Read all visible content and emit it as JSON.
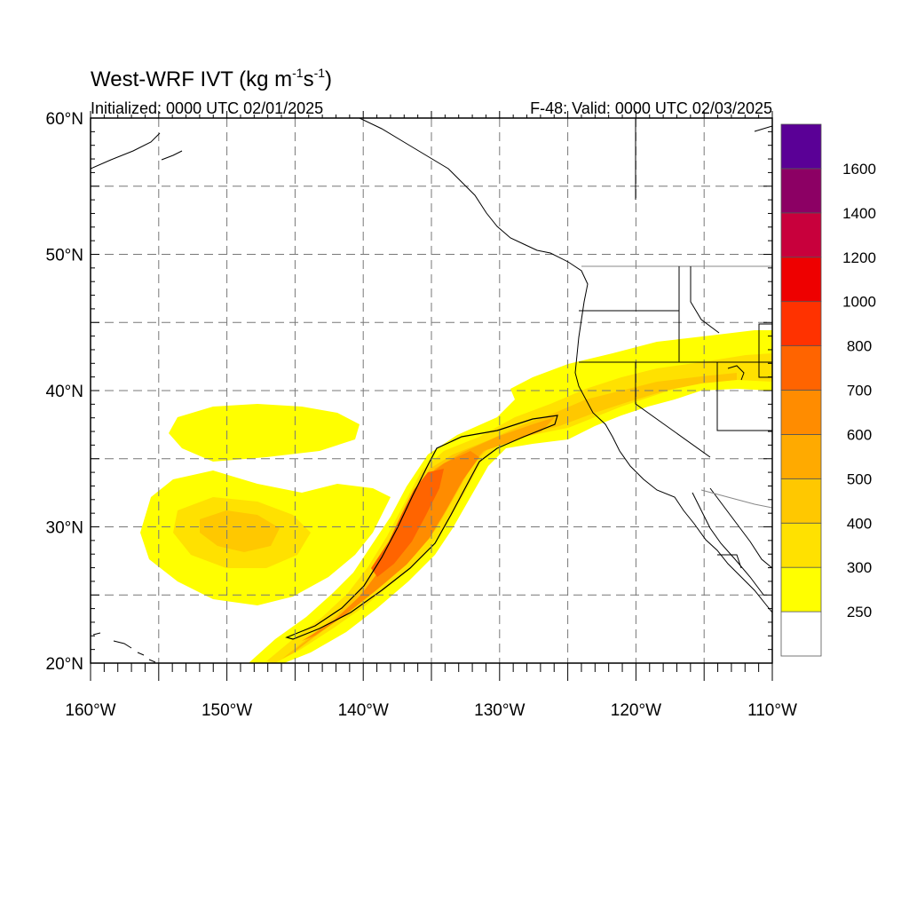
{
  "title": {
    "main": "West-WRF IVT (kg m",
    "sup1": "-1",
    "mid": "s",
    "sup2": "-1",
    "end": ")"
  },
  "subtitle_left": "Initialized: 0000 UTC 02/01/2025",
  "subtitle_right": "F-48: Valid: 0000 UTC 02/03/2025",
  "map": {
    "lon_range": [
      -160,
      -110
    ],
    "lat_range": [
      20,
      60
    ],
    "lon_labels": [
      {
        "lon": -160,
        "text": "160°W"
      },
      {
        "lon": -150,
        "text": "150°W"
      },
      {
        "lon": -140,
        "text": "140°W"
      },
      {
        "lon": -130,
        "text": "130°W"
      },
      {
        "lon": -120,
        "text": "120°W"
      },
      {
        "lon": -110,
        "text": "110°W"
      }
    ],
    "lat_labels": [
      {
        "lat": 60,
        "text": "60°N"
      },
      {
        "lat": 50,
        "text": "50°N"
      },
      {
        "lat": 40,
        "text": "40°N"
      },
      {
        "lat": 30,
        "text": "30°N"
      },
      {
        "lat": 20,
        "text": "20°N"
      }
    ],
    "grid_lons": [
      -155,
      -150,
      -145,
      -140,
      -135,
      -130,
      -125,
      -120,
      -115
    ],
    "grid_lats": [
      25,
      30,
      35,
      40,
      45,
      50,
      55
    ]
  },
  "colorbar": {
    "levels": [
      250,
      300,
      400,
      500,
      600,
      700,
      800,
      1000,
      1200,
      1400,
      1600
    ],
    "labels": [
      "250",
      "300",
      "400",
      "500",
      "600",
      "700",
      "800",
      "1000",
      "1200",
      "1400",
      "1600"
    ],
    "colors": [
      "#ffffff",
      "#ffff00",
      "#ffe100",
      "#ffc800",
      "#ffaa00",
      "#ff8c00",
      "#ff6400",
      "#ff3200",
      "#ee0000",
      "#c8003c",
      "#8c0064",
      "#5a0096"
    ]
  }
}
